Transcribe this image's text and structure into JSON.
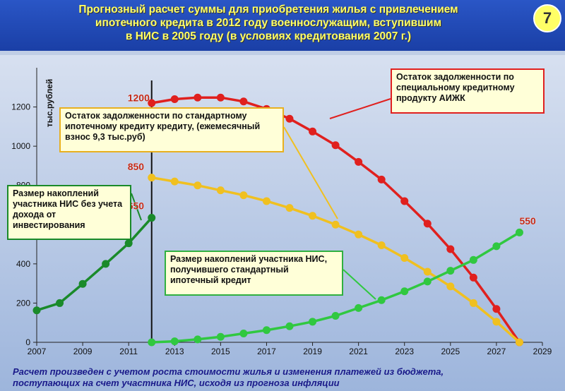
{
  "header": {
    "title": "Прогнозный расчет суммы для приобретения жилья с привлечением\nипотечного кредита  в 2012 году военнослужащим, вступившим\nв НИС в 2005 году (в условиях кредитования 2007 г.)",
    "page_number": "7"
  },
  "annotations": {
    "aizhk": "Остаток задолженности по специальному кредитному продукту АИЖК",
    "standard_debt": "Остаток задолженности по стандартному ипотечному  кредиту кредиту, (ежемесячный взнос 9,3 тыс.руб)",
    "savings_no_income": "Размер накоплений участника НИС без учета дохода от инвестирования",
    "savings_with_credit": "Размер накоплений участника НИС, получившего стандартный ипотечный кредит"
  },
  "footnote": "Расчет произведен с учетом роста стоимости жилья и изменения платежей из бюджета,\nпоступающих на счет участника НИС, исходя из прогноза инфляции",
  "colors": {
    "red": "#e0201e",
    "gold": "#f0c020",
    "green": "#30c840",
    "dark_green": "#1a8a2a"
  },
  "chart_data": {
    "type": "line",
    "ylabel": "тыс.рублей",
    "xlim": [
      2007,
      2029
    ],
    "ylim": [
      0,
      1400
    ],
    "x_ticks": [
      2007,
      2009,
      2011,
      2013,
      2015,
      2017,
      2019,
      2021,
      2023,
      2025,
      2027,
      2029
    ],
    "y_ticks": [
      0,
      200,
      400,
      600,
      800,
      1000,
      1200
    ],
    "grid": false,
    "series": [
      {
        "key": "aizhk",
        "color": "red",
        "x": [
          2012,
          2013,
          2014,
          2015,
          2016,
          2017,
          2018,
          2019,
          2020,
          2021,
          2022,
          2023,
          2024,
          2025,
          2026,
          2027,
          2028
        ],
        "values": [
          1220,
          1240,
          1248,
          1248,
          1228,
          1190,
          1140,
          1075,
          1005,
          920,
          830,
          720,
          605,
          475,
          330,
          170,
          0
        ]
      },
      {
        "key": "standard",
        "color": "gold",
        "x": [
          2012,
          2013,
          2014,
          2015,
          2016,
          2017,
          2018,
          2019,
          2020,
          2021,
          2022,
          2023,
          2024,
          2025,
          2026,
          2027,
          2028
        ],
        "values": [
          840,
          820,
          800,
          775,
          750,
          720,
          685,
          645,
          600,
          550,
          495,
          430,
          360,
          285,
          200,
          105,
          0
        ]
      },
      {
        "key": "nis_credit",
        "color": "green",
        "x": [
          2012,
          2013,
          2014,
          2015,
          2016,
          2017,
          2018,
          2019,
          2020,
          2021,
          2022,
          2023,
          2024,
          2025,
          2026,
          2027,
          2028
        ],
        "values": [
          0,
          5,
          15,
          28,
          45,
          62,
          82,
          105,
          135,
          175,
          215,
          260,
          310,
          365,
          420,
          490,
          560
        ]
      },
      {
        "key": "nis_no_income",
        "color": "dark_green",
        "x": [
          2007,
          2008,
          2009,
          2010,
          2011,
          2012
        ],
        "values": [
          163,
          200,
          298,
          400,
          505,
          635
        ]
      }
    ],
    "value_labels": [
      {
        "text": "1200",
        "x": 2012,
        "y": 1200
      },
      {
        "text": "850",
        "x": 2012,
        "y": 850
      },
      {
        "text": "650",
        "x": 2012,
        "y": 650
      },
      {
        "text": "550",
        "x": 2028,
        "y": 550
      }
    ],
    "marker_line_x": 2012
  }
}
